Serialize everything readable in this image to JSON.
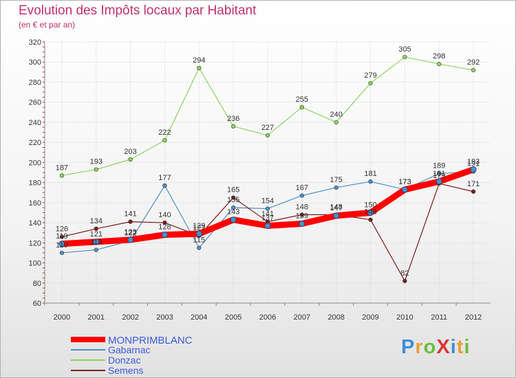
{
  "title": "Evolution des Impôts locaux par Habitant",
  "subtitle": "(en € et par an)",
  "logo": {
    "text": "ProXiti",
    "letter_colors": [
      "#3d8fd6",
      "#e8a03a",
      "#6abf3c",
      "#d93636",
      "#3d8fd6",
      "#e8a03a",
      "#6abf3c"
    ]
  },
  "chart_data": {
    "type": "line",
    "title": "Evolution des Impôts locaux par Habitant",
    "subtitle": "(en € et par an)",
    "xlabel": "",
    "ylabel": "",
    "ylim": [
      60,
      320
    ],
    "y_ticks": [
      60,
      80,
      100,
      120,
      140,
      160,
      180,
      200,
      220,
      240,
      260,
      280,
      300,
      320
    ],
    "grid": true,
    "legend_position": "bottom-left",
    "categories": [
      "2000",
      "2001",
      "2002",
      "2003",
      "2004",
      "2005",
      "2006",
      "2007",
      "2008",
      "2009",
      "2010",
      "2011",
      "2012"
    ],
    "series": [
      {
        "name": "MONPRIMBLANC",
        "color": "#ff0000",
        "values": [
          119,
          121,
          123,
          128,
          129,
          143,
          137,
          139,
          147,
          150,
          173,
          181,
          193
        ]
      },
      {
        "name": "Gabarnac",
        "color": "#4e8fc7",
        "values": [
          110,
          113,
          122,
          177,
          115,
          155,
          154,
          167,
          175,
          181,
          173,
          189,
          191
        ]
      },
      {
        "name": "Donzac",
        "color": "#8dd35f",
        "values": [
          187,
          193,
          203,
          222,
          294,
          236,
          227,
          255,
          240,
          279,
          305,
          298,
          292
        ]
      },
      {
        "name": "Semens",
        "color": "#7a1a1a",
        "values": [
          126,
          134,
          141,
          140,
          127,
          165,
          141,
          148,
          148,
          143,
          82,
          179,
          171
        ]
      }
    ]
  }
}
